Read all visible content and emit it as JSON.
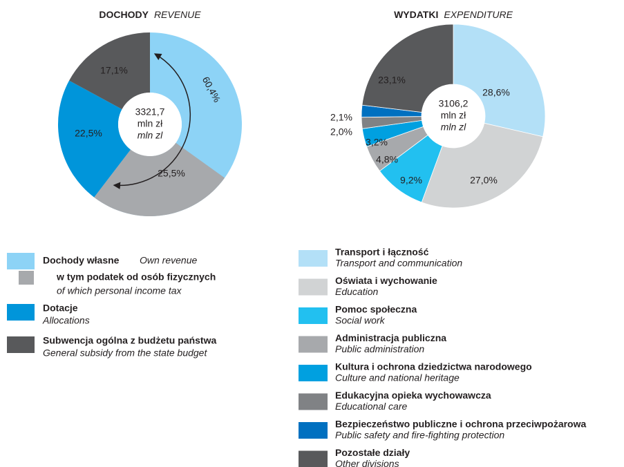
{
  "chart_data": [
    {
      "type": "donut",
      "title": "DOCHODY",
      "subtitle": "REVENUE",
      "center": [
        "3321,7",
        "mln zł",
        "mln zl"
      ],
      "categories": [
        "Dochody własne",
        "w tym podatek od osób fizycznych",
        "Dotacje",
        "Subwencja ogólna z budżetu państwa"
      ],
      "categories_en": [
        "Own revenue",
        "of which personal income tax",
        "Allocations",
        "General subsidy from the state budget"
      ],
      "values": [
        60.4,
        25.5,
        22.5,
        17.1
      ],
      "value_labels": [
        "60,4%",
        "25,5%",
        "22,5%",
        "17,1%"
      ],
      "colors": [
        "#8dd3f6",
        "#a7a9ac",
        "#0095da",
        "#58595b"
      ]
    },
    {
      "type": "donut",
      "title": "WYDATKI",
      "subtitle": "EXPENDITURE",
      "center": [
        "3106,2",
        "mln zł",
        "mln zl"
      ],
      "categories": [
        "Transport i łączność",
        "Oświata i wychowanie",
        "Pomoc społeczna",
        "Administracja publiczna",
        "Kultura i ochrona dziedzictwa narodowego",
        "Edukacyjna opieka wychowawcza",
        "Bezpieczeństwo publiczne i ochrona przeciwpożarowa",
        "Pozostałe działy"
      ],
      "categories_en": [
        "Transport and communication",
        "Education",
        "Social work",
        "Public administration",
        "Culture and national heritage",
        "Educational care",
        "Public safety and fire-fighting protection",
        "Other divisions"
      ],
      "values": [
        28.6,
        27.0,
        9.2,
        4.8,
        3.2,
        2.0,
        2.1,
        23.1
      ],
      "value_labels": [
        "28,6%",
        "27,0%",
        "9,2%",
        "4,8%",
        "3,2%",
        "2,0%",
        "2,1%",
        "23,1%"
      ],
      "colors": [
        "#b3e0f7",
        "#d1d3d4",
        "#22c0f0",
        "#a7a9ac",
        "#00a0e0",
        "#808285",
        "#0070c0",
        "#58595b"
      ]
    }
  ]
}
